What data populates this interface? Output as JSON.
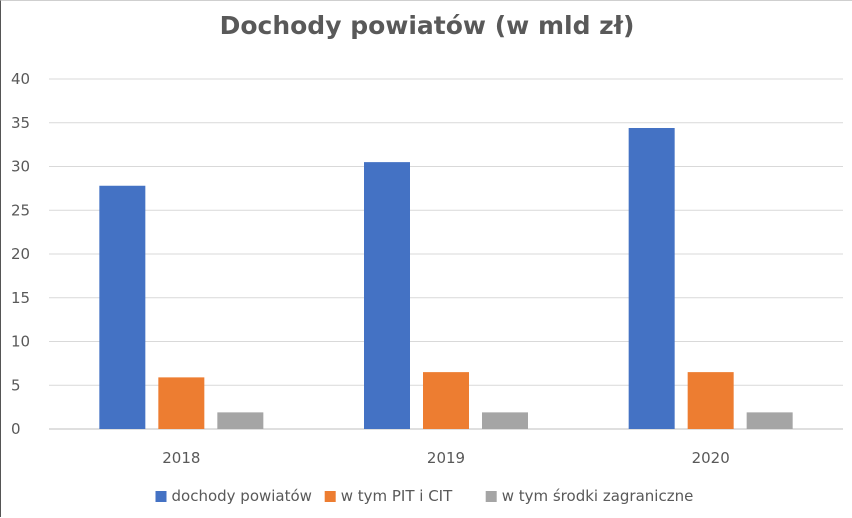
{
  "chart_data": {
    "type": "bar",
    "title": "Dochody powiatów (w mld zł)",
    "xlabel": "",
    "ylabel": "",
    "categories": [
      "2018",
      "2019",
      "2020"
    ],
    "ylim": [
      0,
      40
    ],
    "yticks": [
      0,
      5,
      10,
      15,
      20,
      25,
      30,
      35,
      40
    ],
    "grid": true,
    "legend_position": "bottom",
    "series": [
      {
        "name": "dochody powiatów",
        "color": "#4472C4",
        "values": [
          27.8,
          30.5,
          34.4
        ]
      },
      {
        "name": "w tym PIT i CIT",
        "color": "#ED7D31",
        "values": [
          5.9,
          6.5,
          6.5
        ]
      },
      {
        "name": "w tym środki zagraniczne",
        "color": "#A5A5A5",
        "values": [
          1.9,
          1.9,
          1.9
        ]
      }
    ]
  }
}
